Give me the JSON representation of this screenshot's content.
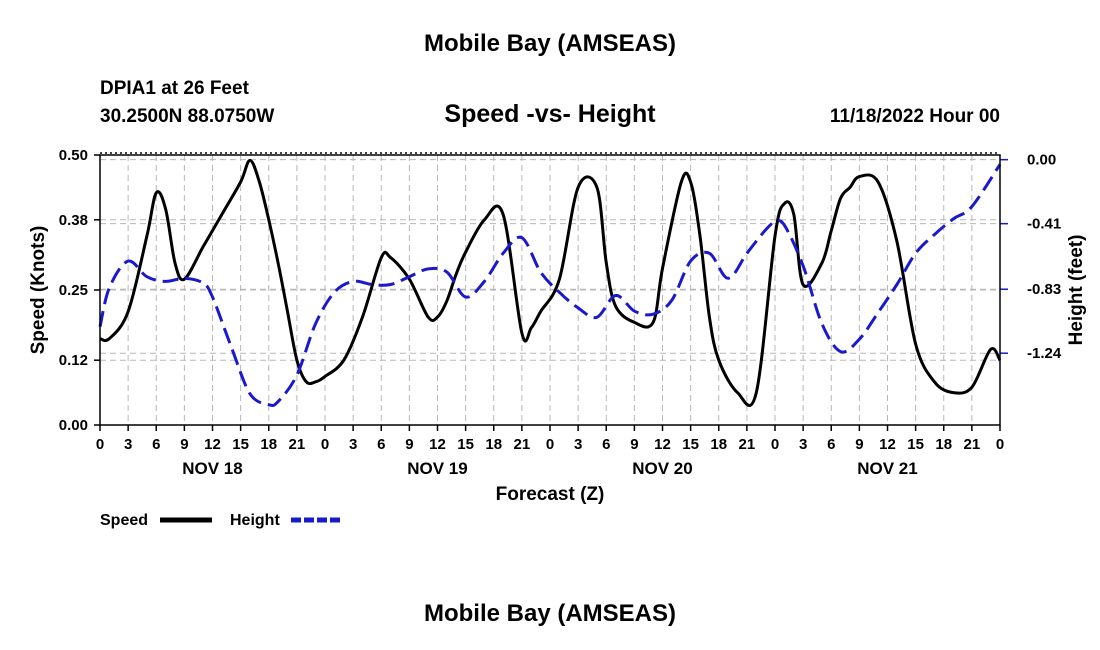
{
  "page": {
    "top_title": "Mobile Bay (AMSEAS)",
    "station_line": "DPIA1 at 26 Feet",
    "coords_line": "30.2500N  88.0750W",
    "subtitle": "Speed -vs- Height",
    "date_line": "11/18/2022 Hour 00",
    "bottom_title": "Mobile Bay (AMSEAS)"
  },
  "chart_data": {
    "type": "line",
    "title": "Speed -vs- Height",
    "xlabel": "Forecast (Z)",
    "ylabel": "Speed (Knots)",
    "y2label": "Height (feet)",
    "xlim": [
      0,
      96
    ],
    "ylim": [
      0,
      0.5
    ],
    "y2lim": [
      -1.7,
      0.03
    ],
    "grid": true,
    "legend_position": "bottom-left",
    "yticks": [
      0.0,
      0.12,
      0.25,
      0.38,
      0.5
    ],
    "ytick_labels": [
      "0.00",
      "0.12",
      "0.25",
      "0.38",
      "0.50"
    ],
    "y2ticks": [
      0.0,
      -0.41,
      -0.83,
      -1.24
    ],
    "y2tick_labels": [
      "0.00",
      "-0.41",
      "-0.83",
      "-1.24"
    ],
    "x_tick_labels": [
      "0",
      "3",
      "6",
      "9",
      "12",
      "15",
      "18",
      "21",
      "0",
      "3",
      "6",
      "9",
      "12",
      "15",
      "18",
      "21",
      "0",
      "3",
      "6",
      "9",
      "12",
      "15",
      "18",
      "21",
      "0",
      "3",
      "6",
      "9",
      "12",
      "15",
      "18",
      "21",
      "0"
    ],
    "day_labels": [
      "NOV 18",
      "NOV 19",
      "NOV 20",
      "NOV 21"
    ],
    "series": [
      {
        "name": "Speed",
        "axis": "left",
        "color": "#000000",
        "dash": "solid",
        "x": [
          0,
          1,
          3,
          5,
          6,
          7,
          8,
          9,
          11,
          13,
          15,
          16,
          17,
          18,
          19,
          20,
          21,
          22,
          23,
          24,
          26,
          28,
          30,
          31,
          33,
          35,
          36,
          37,
          38,
          39,
          41,
          43,
          45,
          46,
          47,
          49,
          51,
          53,
          54,
          55,
          57,
          59,
          60,
          62,
          63,
          64,
          65,
          66,
          68,
          70,
          72,
          73,
          74,
          75,
          77,
          78,
          79,
          80,
          81,
          83,
          85,
          87,
          89,
          91,
          93,
          95,
          96
        ],
        "y": [
          0.16,
          0.16,
          0.21,
          0.35,
          0.43,
          0.4,
          0.3,
          0.27,
          0.33,
          0.39,
          0.45,
          0.49,
          0.45,
          0.38,
          0.3,
          0.21,
          0.12,
          0.08,
          0.08,
          0.09,
          0.12,
          0.2,
          0.31,
          0.31,
          0.27,
          0.2,
          0.2,
          0.23,
          0.28,
          0.32,
          0.38,
          0.39,
          0.17,
          0.18,
          0.21,
          0.27,
          0.44,
          0.44,
          0.3,
          0.22,
          0.19,
          0.19,
          0.29,
          0.45,
          0.45,
          0.35,
          0.2,
          0.12,
          0.06,
          0.06,
          0.35,
          0.41,
          0.39,
          0.26,
          0.3,
          0.36,
          0.42,
          0.44,
          0.46,
          0.45,
          0.34,
          0.15,
          0.08,
          0.06,
          0.07,
          0.14,
          0.12
        ]
      },
      {
        "name": "Height",
        "axis": "right",
        "color": "#1a1acc",
        "dash": "dashed",
        "x": [
          0,
          1,
          3,
          5,
          7,
          9,
          11,
          12,
          14,
          16,
          18,
          19,
          21,
          23,
          25,
          27,
          29,
          31,
          33,
          35,
          37,
          39,
          41,
          43,
          45,
          47,
          49,
          51,
          53,
          55,
          57,
          59,
          61,
          63,
          65,
          67,
          69,
          71,
          72,
          73,
          75,
          77,
          79,
          81,
          83,
          85,
          87,
          89,
          91,
          93,
          96
        ],
        "y": [
          -1.07,
          -0.82,
          -0.65,
          -0.75,
          -0.78,
          -0.76,
          -0.79,
          -0.88,
          -1.2,
          -1.5,
          -1.57,
          -1.55,
          -1.38,
          -1.05,
          -0.85,
          -0.78,
          -0.8,
          -0.8,
          -0.75,
          -0.7,
          -0.72,
          -0.88,
          -0.78,
          -0.6,
          -0.5,
          -0.72,
          -0.85,
          -0.95,
          -1.01,
          -0.87,
          -0.97,
          -0.99,
          -0.9,
          -0.65,
          -0.6,
          -0.76,
          -0.6,
          -0.45,
          -0.4,
          -0.42,
          -0.68,
          -1.05,
          -1.23,
          -1.15,
          -0.98,
          -0.8,
          -0.6,
          -0.48,
          -0.38,
          -0.3,
          -0.03
        ]
      }
    ]
  }
}
